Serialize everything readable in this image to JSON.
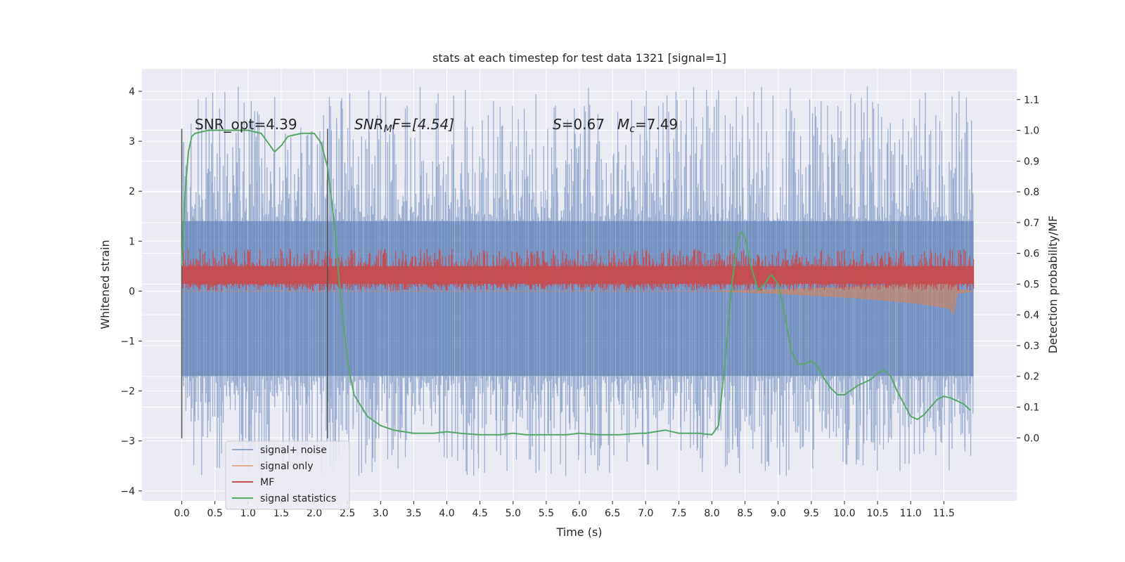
{
  "chart_data": {
    "type": "line",
    "title": "stats at each timestep for test data 1321 [signal=1]",
    "xlabel": "Time (s)",
    "ylabel_left": "Whitened strain",
    "ylabel_right": "Detection probability/MF",
    "xlim": [
      -0.6,
      12.6
    ],
    "ylim_left": [
      -4.2,
      4.45
    ],
    "ylim_right": [
      -0.205,
      1.2
    ],
    "xticks": [
      0.0,
      0.5,
      1.0,
      1.5,
      2.0,
      2.5,
      3.0,
      3.5,
      4.0,
      4.5,
      5.0,
      5.5,
      6.0,
      6.5,
      7.0,
      7.5,
      8.0,
      8.5,
      9.0,
      9.5,
      10.0,
      10.5,
      11.0,
      11.5
    ],
    "xtick_labels": [
      "0.0",
      "0.5",
      "1.0",
      "1.5",
      "2.0",
      "2.5",
      "3.0",
      "3.5",
      "4.0",
      "4.5",
      "5.0",
      "5.5",
      "6.0",
      "6.5",
      "7.0",
      "7.5",
      "8.0",
      "8.5",
      "9.0",
      "9.5",
      "10.0",
      "10.5",
      "11.0",
      "11.5"
    ],
    "yticks_left": [
      -4,
      -3,
      -2,
      -1,
      0,
      1,
      2,
      3,
      4
    ],
    "ytick_labels_left": [
      "−4",
      "−3",
      "−2",
      "−1",
      "0",
      "1",
      "2",
      "3",
      "4"
    ],
    "yticks_right": [
      0.0,
      0.1,
      0.2,
      0.3,
      0.4,
      0.5,
      0.6,
      0.7,
      0.8,
      0.9,
      1.0,
      1.1
    ],
    "ytick_labels_right": [
      "0.0",
      "0.1",
      "0.2",
      "0.3",
      "0.4",
      "0.5",
      "0.6",
      "0.7",
      "0.8",
      "0.9",
      "1.0",
      "1.1"
    ],
    "grid": true,
    "legend_position": "lower-left",
    "colors": {
      "signal_noise": "#4c72b0",
      "signal_only": "#dd8452",
      "mf": "#c44e52",
      "signal_statistics": "#55a868",
      "background": "#eaeaf2",
      "grid": "#ffffff",
      "vline": "#555555"
    },
    "series": [
      {
        "name": "signal+ noise",
        "axis": "left",
        "kind": "noise_band",
        "x_range": [
          0.0,
          11.95
        ],
        "core_range": [
          -1.7,
          1.4
        ],
        "spike_max": 4.1,
        "spike_min": -3.7
      },
      {
        "name": "signal only",
        "axis": "left",
        "kind": "chirp_envelope",
        "x": [
          0.0,
          8.0,
          9.0,
          10.0,
          10.5,
          11.0,
          11.3,
          11.6,
          11.65,
          11.7,
          11.95
        ],
        "lower": [
          0.0,
          0.0,
          -0.05,
          -0.12,
          -0.17,
          -0.23,
          -0.28,
          -0.35,
          -0.45,
          -0.05,
          0.0
        ],
        "upper": [
          0.0,
          0.0,
          0.03,
          0.07,
          0.1,
          0.13,
          0.16,
          0.2,
          0.25,
          0.03,
          0.0
        ]
      },
      {
        "name": "MF",
        "axis": "left",
        "kind": "noise_band",
        "x_range": [
          0.0,
          11.95
        ],
        "core_range": [
          0.1,
          0.55
        ],
        "spike_max": 0.85,
        "spike_min": 0.0
      },
      {
        "name": "signal statistics",
        "axis": "right",
        "kind": "line",
        "x": [
          0.0,
          0.05,
          0.1,
          0.15,
          0.2,
          0.4,
          0.7,
          1.0,
          1.2,
          1.3,
          1.4,
          1.5,
          1.6,
          1.8,
          2.0,
          2.1,
          2.2,
          2.3,
          2.4,
          2.5,
          2.6,
          2.8,
          3.0,
          3.2,
          3.5,
          3.8,
          4.0,
          4.2,
          4.5,
          4.8,
          5.0,
          5.2,
          5.5,
          5.8,
          6.0,
          6.3,
          6.6,
          6.9,
          7.0,
          7.3,
          7.5,
          7.8,
          8.0,
          8.1,
          8.2,
          8.3,
          8.4,
          8.45,
          8.5,
          8.6,
          8.7,
          8.8,
          8.85,
          8.9,
          9.0,
          9.1,
          9.2,
          9.3,
          9.4,
          9.5,
          9.6,
          9.7,
          9.8,
          9.9,
          10.0,
          10.2,
          10.4,
          10.5,
          10.6,
          10.7,
          10.8,
          10.9,
          11.0,
          11.1,
          11.2,
          11.3,
          11.4,
          11.5,
          11.6,
          11.7,
          11.8,
          11.9
        ],
        "y": [
          0.56,
          0.8,
          0.93,
          0.98,
          0.99,
          1.0,
          1.0,
          1.0,
          0.99,
          0.96,
          0.93,
          0.95,
          0.98,
          0.99,
          0.99,
          0.96,
          0.88,
          0.7,
          0.45,
          0.25,
          0.14,
          0.07,
          0.04,
          0.025,
          0.015,
          0.015,
          0.02,
          0.015,
          0.01,
          0.01,
          0.015,
          0.01,
          0.01,
          0.01,
          0.015,
          0.01,
          0.01,
          0.015,
          0.015,
          0.025,
          0.015,
          0.015,
          0.01,
          0.04,
          0.25,
          0.5,
          0.65,
          0.67,
          0.65,
          0.55,
          0.48,
          0.5,
          0.52,
          0.53,
          0.5,
          0.4,
          0.28,
          0.24,
          0.24,
          0.25,
          0.23,
          0.19,
          0.16,
          0.14,
          0.14,
          0.17,
          0.19,
          0.21,
          0.22,
          0.2,
          0.15,
          0.11,
          0.07,
          0.06,
          0.075,
          0.1,
          0.125,
          0.135,
          0.13,
          0.12,
          0.11,
          0.09
        ]
      }
    ],
    "vlines": [
      0.0,
      2.2
    ],
    "vline_range": [
      -2.95,
      3.25
    ],
    "annotations": {
      "snr_opt": "SNR_opt=4.39",
      "snr_mf_base": "SNR",
      "snr_mf_sub": "M",
      "snr_mf_tail": "F=[4.54]",
      "s_var": "S",
      "s_val": "=0.67",
      "mc_var": "M",
      "mc_sub": "c",
      "mc_val": "=7.49"
    },
    "legend": [
      "signal+ noise",
      "signal only",
      "MF",
      "signal statistics"
    ]
  }
}
